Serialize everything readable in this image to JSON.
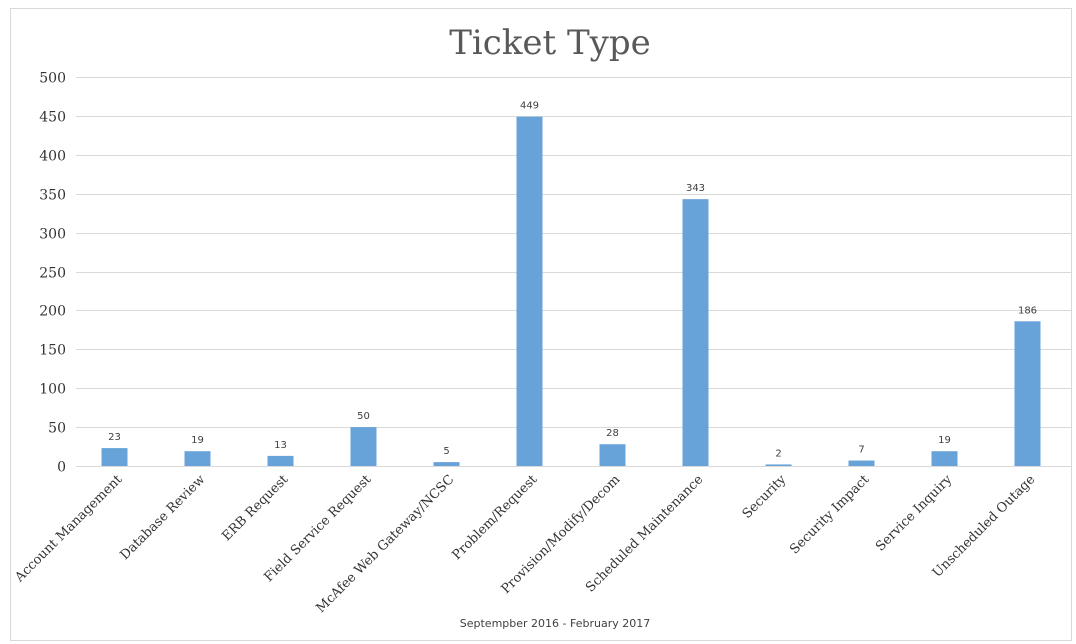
{
  "chart_data": {
    "type": "bar",
    "title": "Ticket Type",
    "xlabel": "Septempber 2016 - February 2017",
    "ylabel": "",
    "ylim": [
      0,
      500
    ],
    "yticks": [
      0,
      50,
      100,
      150,
      200,
      250,
      300,
      350,
      400,
      450,
      500
    ],
    "grid": true,
    "categories": [
      "Account Management",
      "Database Review",
      "ERB Request",
      "Field Service Request",
      "McAfee Web Gateway/NCSC",
      "Problem/Request",
      "Provision/Modify/Decom",
      "Scheduled Maintenance",
      "Security",
      "Security Impact",
      "Service Inquiry",
      "Unscheduled Outage"
    ],
    "values": [
      23,
      19,
      13,
      50,
      5,
      449,
      28,
      343,
      2,
      7,
      19,
      186
    ],
    "data_labels": true,
    "colors": {
      "bar": "#67a2d8"
    }
  }
}
